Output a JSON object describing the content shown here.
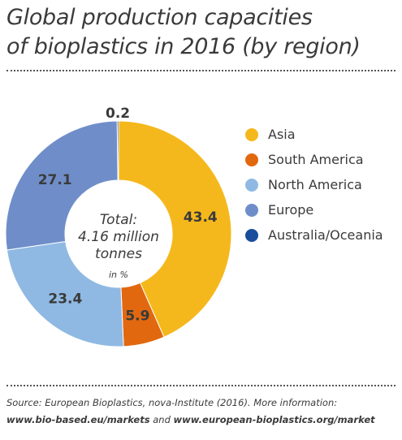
{
  "title": {
    "line1": "Global production capacities",
    "line2": "of bioplastics in 2016 (by region)"
  },
  "chart_data": {
    "type": "pie",
    "title": "Global production capacities of bioplastics in 2016 (by region)",
    "donut": true,
    "center_text": [
      "Total:",
      "4.16 million",
      "tonnes"
    ],
    "unit": "in %",
    "categories": [
      "Asia",
      "South America",
      "North America",
      "Europe",
      "Australia/Oceania"
    ],
    "values": [
      43.4,
      5.9,
      23.4,
      27.1,
      0.2
    ],
    "labels": [
      "43.4",
      "5.9",
      "23.4",
      "27.1",
      "0.2"
    ],
    "colors": [
      "#f5b81c",
      "#e2680f",
      "#8fb9e3",
      "#6f8ec9",
      "#1a4d9c"
    ],
    "label_colors": [
      "#3a3a3a",
      "#3a3a3a",
      "#3a3a3a",
      "#3a3a3a",
      "#3a3a3a"
    ],
    "legend_position": "right"
  },
  "source": {
    "line1": "Source: European Bioplastics, nova-Institute (2016). More information:",
    "link1": "www.bio-based.eu/markets",
    "joiner": " and ",
    "link2": "www.european-bioplastics.org/market"
  }
}
